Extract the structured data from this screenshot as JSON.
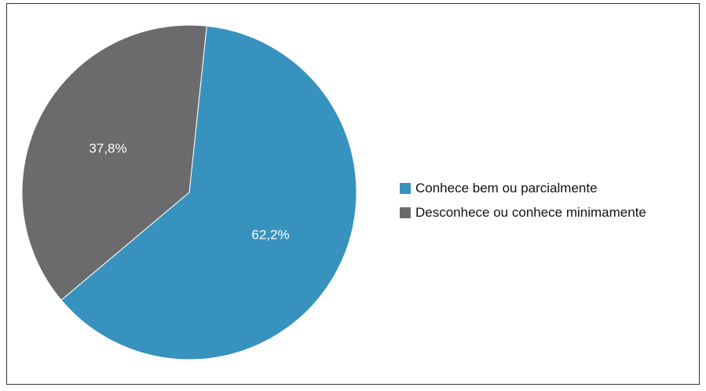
{
  "chart_data": {
    "type": "pie",
    "slices": [
      {
        "label": "Conhece bem ou parcialmente",
        "value": 62.2,
        "value_label": "62,2%",
        "color": "#3792be"
      },
      {
        "label": "Desconhece ou conhece minimamente",
        "value": 37.8,
        "value_label": "37,8%",
        "color": "#6b6b6e"
      }
    ],
    "start_angle_deg": 6,
    "direction": "clockwise",
    "legend_position": "right"
  }
}
